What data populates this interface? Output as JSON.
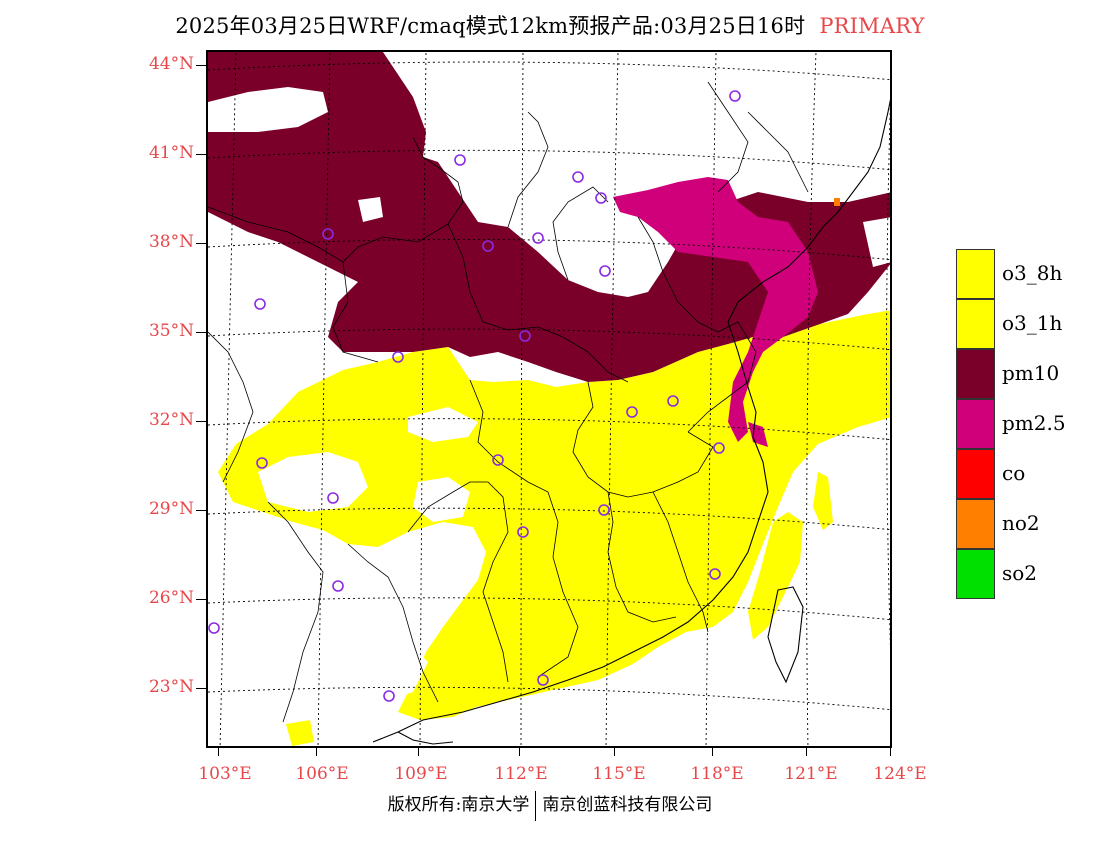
{
  "title": {
    "main": "2025年03月25日WRF/cmaq模式12km预报产品:03月25日16时",
    "tag": "PRIMARY",
    "tag_color": "#e8474a"
  },
  "latitude_labels": [
    "44°N",
    "41°N",
    "38°N",
    "35°N",
    "32°N",
    "29°N",
    "26°N",
    "23°N"
  ],
  "longitude_labels": [
    "103°E",
    "106°E",
    "109°E",
    "112°E",
    "115°E",
    "118°E",
    "121°E",
    "124°E"
  ],
  "legend": {
    "items": [
      {
        "label": "o3_8h",
        "color": "#ffff00"
      },
      {
        "label": "o3_1h",
        "color": "#ffff00"
      },
      {
        "label": "pm10",
        "color": "#7b0029"
      },
      {
        "label": "pm2.5",
        "color": "#d0007a"
      },
      {
        "label": "co",
        "color": "#ff0000"
      },
      {
        "label": "no2",
        "color": "#ff7f00"
      },
      {
        "label": "so2",
        "color": "#00e000"
      }
    ]
  },
  "copyright": {
    "left": "版权所有:南京大学",
    "right": "南京创蓝科技有限公司"
  },
  "map": {
    "primary_pollutant_colors": {
      "o3": "#ffff00",
      "pm10": "#7b0029",
      "pm2_5": "#d0007a",
      "no2": "#ff7f00"
    },
    "station_marker_color": "#8a2be2"
  }
}
